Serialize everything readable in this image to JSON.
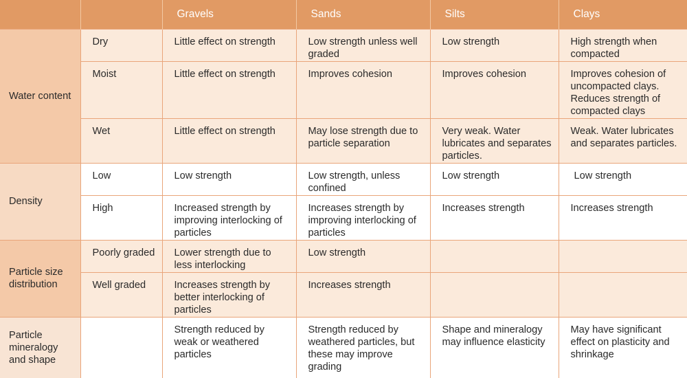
{
  "header": {
    "corner": "",
    "col2": "",
    "columns": [
      "Gravels",
      "Sands",
      "Silts",
      "Clays"
    ]
  },
  "groups": {
    "water": {
      "label": "Water content",
      "rows": [
        {
          "sub": "Dry",
          "cells": [
            "Little effect on strength",
            "Low strength unless well graded",
            "Low strength",
            "High strength when compacted"
          ]
        },
        {
          "sub": "Moist",
          "cells": [
            "Little effect on strength",
            "Improves cohesion",
            "Improves cohesion",
            "Improves cohesion of uncompacted clays. Reduces strength of compacted clays"
          ]
        },
        {
          "sub": "Wet",
          "cells": [
            "Little effect on strength",
            "May lose strength due to particle separation",
            "Very weak. Water lubricates and separates particles.",
            "Weak. Water lubricates and separates particles."
          ]
        }
      ]
    },
    "density": {
      "label": "Density",
      "rows": [
        {
          "sub": "Low",
          "cells": [
            "Low strength",
            "Low strength, unless confined",
            "Low strength",
            "Low strength"
          ]
        },
        {
          "sub": "High",
          "cells": [
            "Increased strength by improving interlocking of particles",
            "Increases strength by improving interlocking of particles",
            "Increases strength",
            "Increases strength"
          ]
        }
      ]
    },
    "psd": {
      "label": "Particle size distribution",
      "rows": [
        {
          "sub": "Poorly graded",
          "cells": [
            "Lower strength due to less interlocking",
            "Low strength",
            "",
            ""
          ]
        },
        {
          "sub": "Well graded",
          "cells": [
            "Increases strength by better interlocking of particles",
            "Increases strength",
            "",
            ""
          ]
        }
      ]
    },
    "mineralogy": {
      "label": "Particle mineralogy and shape",
      "rows": [
        {
          "sub": "",
          "cells": [
            "Strength reduced by weak or weathered particles",
            "Strength reduced by weathered particles, but these may improve grading",
            "Shape and mineralogy may influence elasticity",
            "May have significant effect on plasticity and shrinkage"
          ]
        }
      ]
    }
  }
}
